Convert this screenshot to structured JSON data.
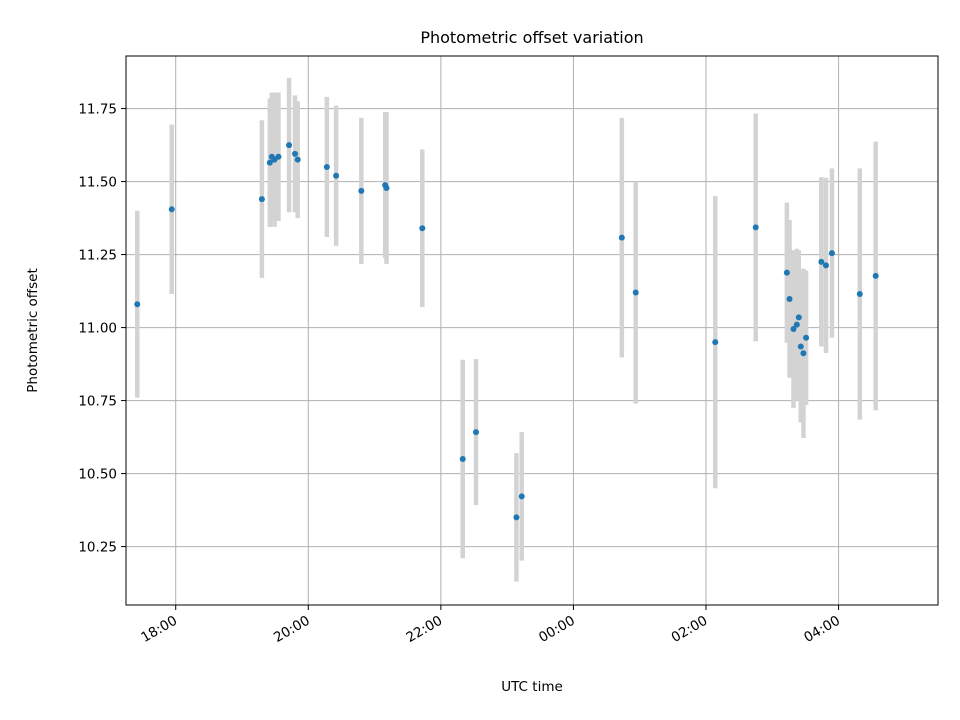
{
  "chart_data": {
    "type": "scatter",
    "title": "Photometric offset variation",
    "xlabel": "UTC time",
    "ylabel": "Photometric offset",
    "grid": true,
    "xlim": [
      -6.75,
      5.5
    ],
    "ylim": [
      10.05,
      11.93
    ],
    "x_unit": "hours relative to 00:00 UTC",
    "xticks": [
      {
        "value": -6,
        "label": "18:00"
      },
      {
        "value": -4,
        "label": "20:00"
      },
      {
        "value": -2,
        "label": "22:00"
      },
      {
        "value": 0,
        "label": "00:00"
      },
      {
        "value": 2,
        "label": "02:00"
      },
      {
        "value": 4,
        "label": "04:00"
      }
    ],
    "yticks": [
      {
        "value": 10.25,
        "label": "10.25"
      },
      {
        "value": 10.5,
        "label": "10.50"
      },
      {
        "value": 10.75,
        "label": "10.75"
      },
      {
        "value": 11.0,
        "label": "11.00"
      },
      {
        "value": 11.25,
        "label": "11.25"
      },
      {
        "value": 11.5,
        "label": "11.50"
      },
      {
        "value": 11.75,
        "label": "11.75"
      }
    ],
    "series": [
      {
        "name": "offset",
        "marker_color": "#1f77b4",
        "errorbar_color": "#d3d3d3",
        "points": [
          {
            "x": -6.58,
            "y": 11.08,
            "err": 0.32
          },
          {
            "x": -6.06,
            "y": 11.405,
            "err": 0.29
          },
          {
            "x": -4.7,
            "y": 11.44,
            "err": 0.27
          },
          {
            "x": -4.58,
            "y": 11.565,
            "err": 0.22
          },
          {
            "x": -4.55,
            "y": 11.585,
            "err": 0.22
          },
          {
            "x": -4.51,
            "y": 11.575,
            "err": 0.23
          },
          {
            "x": -4.45,
            "y": 11.585,
            "err": 0.22
          },
          {
            "x": -4.29,
            "y": 11.625,
            "err": 0.23
          },
          {
            "x": -4.2,
            "y": 11.595,
            "err": 0.2
          },
          {
            "x": -4.16,
            "y": 11.575,
            "err": 0.2
          },
          {
            "x": -3.72,
            "y": 11.55,
            "err": 0.24
          },
          {
            "x": -3.58,
            "y": 11.52,
            "err": 0.24
          },
          {
            "x": -3.2,
            "y": 11.468,
            "err": 0.25
          },
          {
            "x": -2.84,
            "y": 11.488,
            "err": 0.25
          },
          {
            "x": -2.82,
            "y": 11.478,
            "err": 0.26
          },
          {
            "x": -2.28,
            "y": 11.34,
            "err": 0.27
          },
          {
            "x": -1.67,
            "y": 10.55,
            "err": 0.34
          },
          {
            "x": -1.47,
            "y": 10.642,
            "err": 0.25
          },
          {
            "x": -0.86,
            "y": 10.35,
            "err": 0.22
          },
          {
            "x": -0.78,
            "y": 10.422,
            "err": 0.22
          },
          {
            "x": 0.73,
            "y": 11.308,
            "err": 0.41
          },
          {
            "x": 0.94,
            "y": 11.12,
            "err": 0.38
          },
          {
            "x": 2.14,
            "y": 10.95,
            "err": 0.5
          },
          {
            "x": 2.75,
            "y": 11.343,
            "err": 0.39
          },
          {
            "x": 3.22,
            "y": 11.188,
            "err": 0.24
          },
          {
            "x": 3.26,
            "y": 11.098,
            "err": 0.27
          },
          {
            "x": 3.32,
            "y": 10.995,
            "err": 0.27
          },
          {
            "x": 3.37,
            "y": 11.01,
            "err": 0.26
          },
          {
            "x": 3.4,
            "y": 11.035,
            "err": 0.23
          },
          {
            "x": 3.43,
            "y": 10.935,
            "err": 0.26
          },
          {
            "x": 3.47,
            "y": 10.912,
            "err": 0.29
          },
          {
            "x": 3.51,
            "y": 10.965,
            "err": 0.23
          },
          {
            "x": 3.74,
            "y": 11.225,
            "err": 0.29
          },
          {
            "x": 3.81,
            "y": 11.213,
            "err": 0.3
          },
          {
            "x": 3.9,
            "y": 11.255,
            "err": 0.29
          },
          {
            "x": 4.32,
            "y": 11.115,
            "err": 0.43
          },
          {
            "x": 4.56,
            "y": 11.177,
            "err": 0.46
          }
        ]
      }
    ]
  }
}
